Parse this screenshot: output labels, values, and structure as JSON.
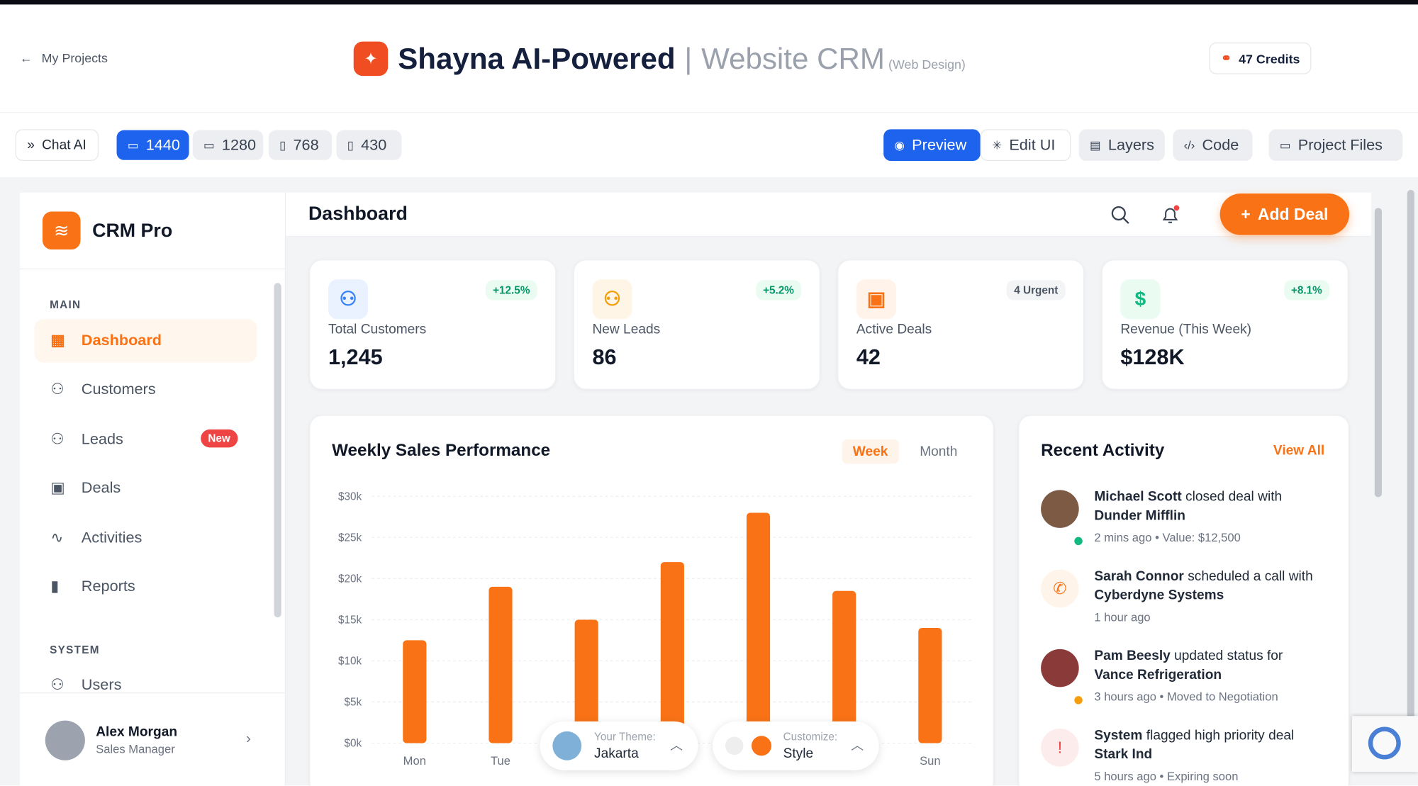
{
  "header": {
    "back": "My Projects",
    "title": "Shayna AI-Powered",
    "separator": "|",
    "subtitle": "Website CRM",
    "tag": "(Web Design)",
    "credits": "47 Credits"
  },
  "toolbar": {
    "chat": "Chat AI",
    "sizes": [
      "1440",
      "1280",
      "768",
      "430"
    ],
    "actions": [
      "Preview",
      "Edit UI",
      "Layers",
      "Code",
      "Project Files"
    ]
  },
  "sidebar": {
    "brand": "CRM Pro",
    "sections": [
      {
        "title": "MAIN",
        "items": [
          "Dashboard",
          "Customers",
          "Leads",
          "Deals",
          "Activities",
          "Reports"
        ]
      },
      {
        "title": "SYSTEM",
        "items": [
          "Users"
        ]
      }
    ],
    "badge": "New",
    "user": {
      "name": "Alex Morgan",
      "role": "Sales Manager"
    }
  },
  "topbar": {
    "title": "Dashboard",
    "button": "Add Deal"
  },
  "stats": [
    {
      "label": "Total Customers",
      "value": "1,245",
      "badge": "+12.5%"
    },
    {
      "label": "New Leads",
      "value": "86",
      "badge": "+5.2%"
    },
    {
      "label": "Active Deals",
      "value": "42",
      "badge": "4 Urgent"
    },
    {
      "label": "Revenue (This Week)",
      "value": "$128K",
      "badge": "+8.1%"
    }
  ],
  "chart_panel": {
    "tabs": [
      "Week",
      "Month"
    ]
  },
  "chart_data": {
    "type": "bar",
    "title": "Weekly Sales Performance",
    "categories": [
      "Mon",
      "Tue",
      null,
      null,
      null,
      null,
      "Sun"
    ],
    "values": [
      12500,
      19000,
      15000,
      22000,
      28000,
      18500,
      14000
    ],
    "color": "#f97316",
    "ylim": [
      0,
      30000
    ],
    "yticks": [
      {
        "value": 0,
        "label": "$0k"
      },
      {
        "value": 5000,
        "label": "$5k"
      },
      {
        "value": 10000,
        "label": "$10k"
      },
      {
        "value": 15000,
        "label": "$15k"
      },
      {
        "value": 20000,
        "label": "$20k"
      },
      {
        "value": 25000,
        "label": "$25k"
      },
      {
        "value": 30000,
        "label": "$30k"
      }
    ],
    "grid": true
  },
  "activity": {
    "title": "Recent Activity",
    "link": "View All",
    "items": [
      {
        "actor": "Michael Scott",
        "action": "closed deal with",
        "target": "Dunder Mifflin",
        "meta": "2 mins ago • Value: $12,500"
      },
      {
        "actor": "Sarah Connor",
        "action": "scheduled a call with",
        "target": "Cyberdyne Systems",
        "meta": "1 hour ago"
      },
      {
        "actor": "Pam Beesly",
        "action": "updated status for",
        "target": "Vance Refrigeration",
        "meta": "3 hours ago • Moved to Negotiation"
      },
      {
        "actor": "System",
        "action": "flagged high priority deal",
        "target": "Stark Ind",
        "meta": "5 hours ago • Expiring soon"
      }
    ]
  },
  "widgets": {
    "theme_label": "Your Theme:",
    "theme": "Jakarta",
    "customize_label": "Customize:",
    "customize": "Style"
  }
}
